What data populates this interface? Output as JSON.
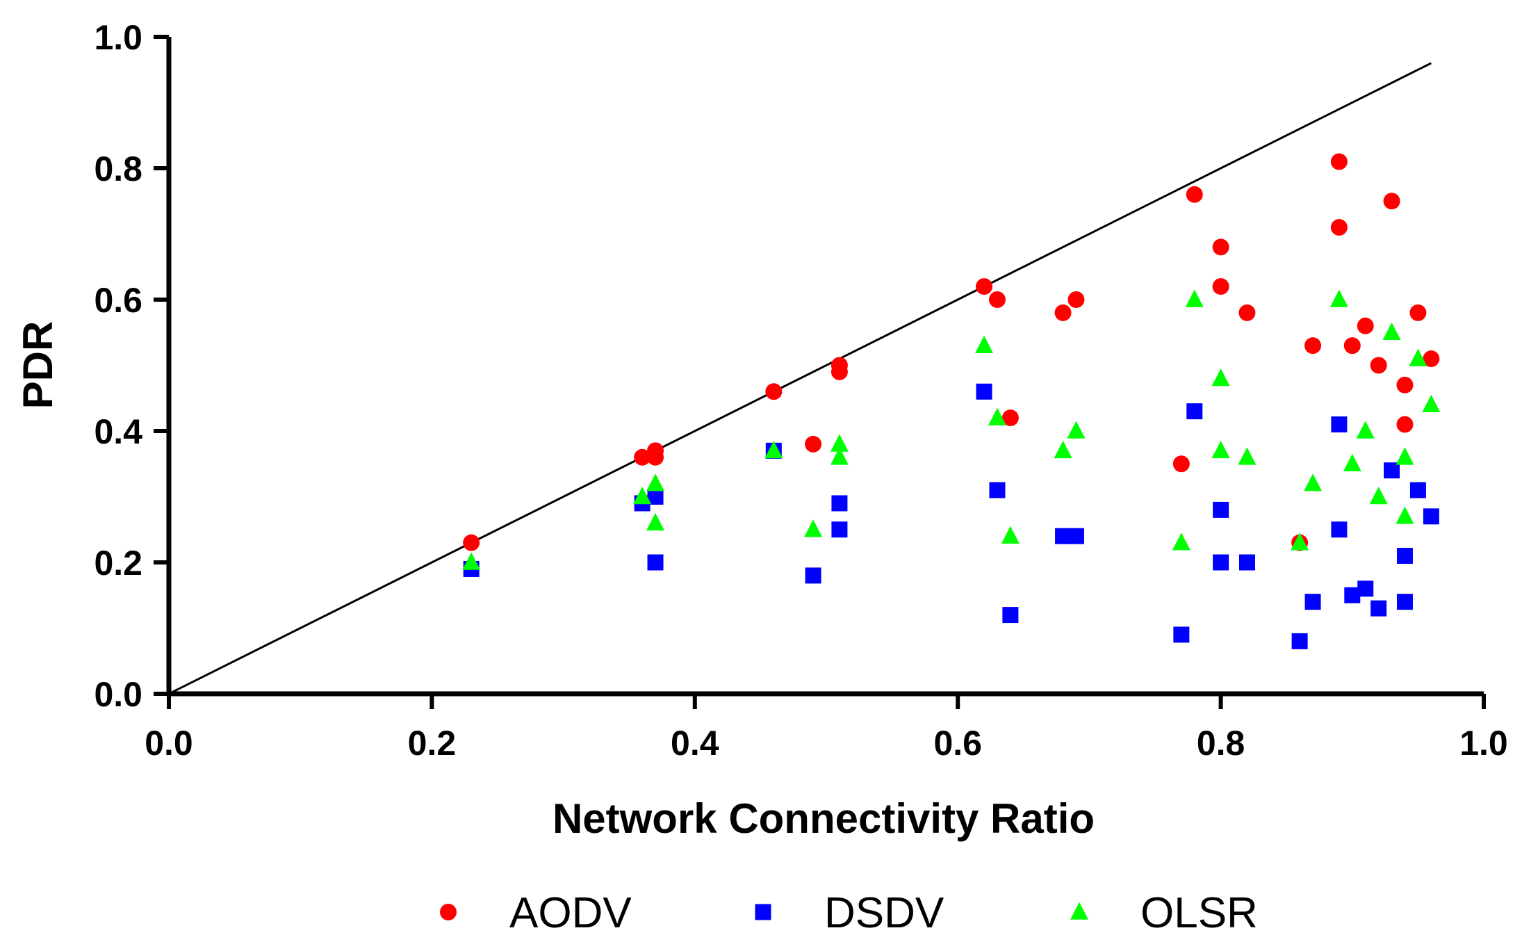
{
  "chart_data": {
    "type": "scatter",
    "xlabel": "Network Connectivity Ratio",
    "ylabel": "PDR",
    "xlim": [
      0.0,
      1.0
    ],
    "ylim": [
      0.0,
      1.0
    ],
    "x_ticks": [
      "0.0",
      "0.2",
      "0.4",
      "0.6",
      "0.8",
      "1.0"
    ],
    "y_ticks": [
      "0.0",
      "0.2",
      "0.4",
      "0.6",
      "0.8",
      "1.0"
    ],
    "grid": false,
    "legend_position": "bottom",
    "reference_line": {
      "x": [
        0.0,
        0.96
      ],
      "y": [
        0.0,
        0.96
      ]
    },
    "series": [
      {
        "name": "AODV",
        "marker": "circle",
        "color": "#ff0000",
        "points": [
          [
            0.23,
            0.23
          ],
          [
            0.36,
            0.36
          ],
          [
            0.37,
            0.36
          ],
          [
            0.37,
            0.37
          ],
          [
            0.46,
            0.46
          ],
          [
            0.49,
            0.38
          ],
          [
            0.51,
            0.49
          ],
          [
            0.51,
            0.5
          ],
          [
            0.62,
            0.62
          ],
          [
            0.63,
            0.6
          ],
          [
            0.64,
            0.42
          ],
          [
            0.68,
            0.58
          ],
          [
            0.69,
            0.6
          ],
          [
            0.77,
            0.35
          ],
          [
            0.78,
            0.76
          ],
          [
            0.8,
            0.68
          ],
          [
            0.8,
            0.62
          ],
          [
            0.82,
            0.58
          ],
          [
            0.86,
            0.23
          ],
          [
            0.87,
            0.53
          ],
          [
            0.89,
            0.81
          ],
          [
            0.89,
            0.71
          ],
          [
            0.9,
            0.53
          ],
          [
            0.91,
            0.56
          ],
          [
            0.92,
            0.5
          ],
          [
            0.93,
            0.75
          ],
          [
            0.94,
            0.47
          ],
          [
            0.94,
            0.41
          ],
          [
            0.95,
            0.58
          ],
          [
            0.96,
            0.51
          ]
        ]
      },
      {
        "name": "DSDV",
        "marker": "square",
        "color": "#0000ff",
        "points": [
          [
            0.23,
            0.19
          ],
          [
            0.36,
            0.29
          ],
          [
            0.37,
            0.3
          ],
          [
            0.37,
            0.2
          ],
          [
            0.46,
            0.37
          ],
          [
            0.49,
            0.18
          ],
          [
            0.51,
            0.29
          ],
          [
            0.51,
            0.25
          ],
          [
            0.62,
            0.46
          ],
          [
            0.63,
            0.31
          ],
          [
            0.64,
            0.12
          ],
          [
            0.68,
            0.24
          ],
          [
            0.69,
            0.24
          ],
          [
            0.77,
            0.09
          ],
          [
            0.78,
            0.43
          ],
          [
            0.8,
            0.28
          ],
          [
            0.8,
            0.2
          ],
          [
            0.82,
            0.2
          ],
          [
            0.86,
            0.08
          ],
          [
            0.87,
            0.14
          ],
          [
            0.89,
            0.41
          ],
          [
            0.89,
            0.25
          ],
          [
            0.9,
            0.15
          ],
          [
            0.91,
            0.16
          ],
          [
            0.92,
            0.13
          ],
          [
            0.93,
            0.34
          ],
          [
            0.94,
            0.21
          ],
          [
            0.94,
            0.14
          ],
          [
            0.95,
            0.31
          ],
          [
            0.96,
            0.27
          ]
        ]
      },
      {
        "name": "OLSR",
        "marker": "triangle",
        "color": "#00ff00",
        "points": [
          [
            0.23,
            0.2
          ],
          [
            0.36,
            0.3
          ],
          [
            0.37,
            0.32
          ],
          [
            0.37,
            0.26
          ],
          [
            0.46,
            0.37
          ],
          [
            0.49,
            0.25
          ],
          [
            0.51,
            0.38
          ],
          [
            0.51,
            0.36
          ],
          [
            0.62,
            0.53
          ],
          [
            0.63,
            0.42
          ],
          [
            0.64,
            0.24
          ],
          [
            0.68,
            0.37
          ],
          [
            0.69,
            0.4
          ],
          [
            0.77,
            0.23
          ],
          [
            0.78,
            0.6
          ],
          [
            0.8,
            0.48
          ],
          [
            0.8,
            0.37
          ],
          [
            0.82,
            0.36
          ],
          [
            0.86,
            0.23
          ],
          [
            0.87,
            0.32
          ],
          [
            0.89,
            0.6
          ],
          [
            0.9,
            0.35
          ],
          [
            0.91,
            0.4
          ],
          [
            0.92,
            0.3
          ],
          [
            0.93,
            0.55
          ],
          [
            0.94,
            0.36
          ],
          [
            0.94,
            0.27
          ],
          [
            0.95,
            0.51
          ],
          [
            0.96,
            0.44
          ]
        ]
      }
    ]
  }
}
